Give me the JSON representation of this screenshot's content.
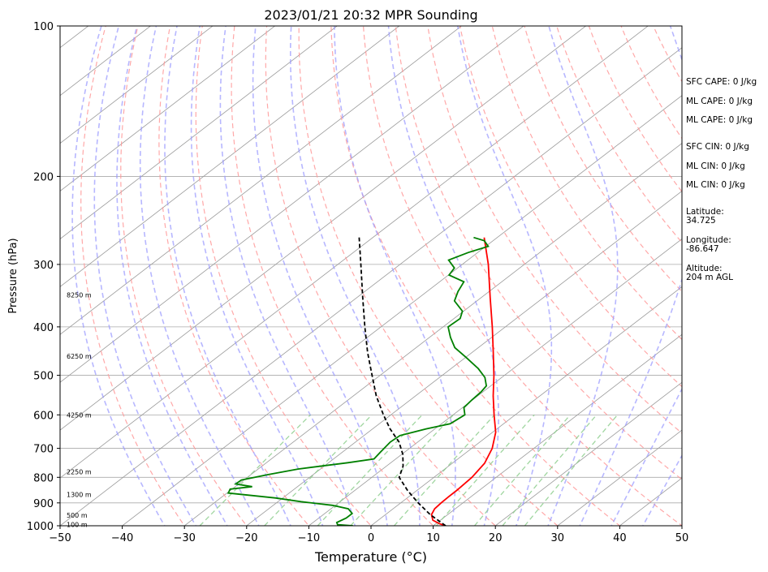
{
  "chart_data": {
    "type": "line",
    "title": "2023/01/21 20:32 MPR Sounding",
    "xlabel": "Temperature (°C)",
    "ylabel": "Pressure (hPa)",
    "xlim": [
      -50,
      50
    ],
    "ylim": [
      1000,
      100
    ],
    "y_scale": "log",
    "x_ticks": [
      -50,
      -40,
      -30,
      -20,
      -10,
      0,
      10,
      20,
      30,
      40,
      50
    ],
    "y_ticks": [
      100,
      200,
      300,
      400,
      500,
      600,
      700,
      800,
      900,
      1000
    ],
    "grid": true,
    "series": [
      {
        "role": "temperature",
        "color": "#ff0000",
        "points": [
          [
            1000,
            12.0
          ],
          [
            990,
            10.5
          ],
          [
            975,
            8.8
          ],
          [
            950,
            7.4
          ],
          [
            925,
            6.7
          ],
          [
            900,
            6.5
          ],
          [
            875,
            6.4
          ],
          [
            850,
            6.4
          ],
          [
            800,
            6.1
          ],
          [
            750,
            5.2
          ],
          [
            700,
            3.3
          ],
          [
            650,
            0.5
          ],
          [
            600,
            -3.4
          ],
          [
            550,
            -7.5
          ],
          [
            500,
            -11.7
          ],
          [
            450,
            -16.6
          ],
          [
            400,
            -22.1
          ],
          [
            350,
            -28.5
          ],
          [
            300,
            -35.8
          ],
          [
            265,
            -42.1
          ]
        ]
      },
      {
        "role": "dewpoint",
        "color": "#008000",
        "points": [
          [
            1000,
            -2.9
          ],
          [
            995,
            -5.6
          ],
          [
            985,
            -6.2
          ],
          [
            965,
            -5.6
          ],
          [
            945,
            -5.6
          ],
          [
            925,
            -7.2
          ],
          [
            910,
            -10.5
          ],
          [
            895,
            -16.3
          ],
          [
            880,
            -21.1
          ],
          [
            860,
            -29.8
          ],
          [
            845,
            -30.3
          ],
          [
            835,
            -27.3
          ],
          [
            825,
            -30.5
          ],
          [
            810,
            -30.4
          ],
          [
            790,
            -27.2
          ],
          [
            770,
            -23.6
          ],
          [
            748,
            -16.9
          ],
          [
            735,
            -13.5
          ],
          [
            712,
            -13.9
          ],
          [
            680,
            -14.4
          ],
          [
            660,
            -14.2
          ],
          [
            640,
            -11.4
          ],
          [
            625,
            -8.6
          ],
          [
            600,
            -8.1
          ],
          [
            580,
            -9.8
          ],
          [
            560,
            -10.1
          ],
          [
            540,
            -10.3
          ],
          [
            525,
            -10.7
          ],
          [
            505,
            -12.7
          ],
          [
            485,
            -15.6
          ],
          [
            460,
            -20.0
          ],
          [
            440,
            -23.8
          ],
          [
            420,
            -26.6
          ],
          [
            400,
            -29.2
          ],
          [
            385,
            -29.0
          ],
          [
            372,
            -30.2
          ],
          [
            355,
            -33.6
          ],
          [
            340,
            -35.0
          ],
          [
            325,
            -36.1
          ],
          [
            315,
            -39.9
          ],
          [
            305,
            -40.5
          ],
          [
            294,
            -43.1
          ],
          [
            284,
            -41.5
          ],
          [
            276,
            -39.6
          ],
          [
            269,
            -41.4
          ],
          [
            265,
            -43.8
          ]
        ]
      },
      {
        "role": "parcel",
        "color": "#000000",
        "dashed": true,
        "points": [
          [
            1000,
            12.0
          ],
          [
            950,
            7.2
          ],
          [
            900,
            2.8
          ],
          [
            850,
            -1.5
          ],
          [
            800,
            -5.6
          ],
          [
            760,
            -7.3
          ],
          [
            720,
            -9.8
          ],
          [
            680,
            -13.0
          ],
          [
            640,
            -17.2
          ],
          [
            600,
            -21.2
          ],
          [
            550,
            -26.3
          ],
          [
            500,
            -31.3
          ],
          [
            450,
            -36.8
          ],
          [
            400,
            -42.6
          ],
          [
            350,
            -49.0
          ],
          [
            300,
            -56.3
          ],
          [
            265,
            -62.2
          ]
        ]
      }
    ],
    "height_labels": [
      {
        "text": "8250 m",
        "p": 345
      },
      {
        "text": "6250 m",
        "p": 458
      },
      {
        "text": "4250 m",
        "p": 600
      },
      {
        "text": "2250 m",
        "p": 780
      },
      {
        "text": "1300 m",
        "p": 866
      },
      {
        "text": "500 m",
        "p": 952
      },
      {
        "text": "100 m",
        "p": 995
      }
    ]
  },
  "indices": {
    "sfc_cape": "SFC CAPE: 0 J/kg",
    "ml_cape_1": "ML CAPE: 0 J/kg",
    "ml_cape_2": "ML CAPE: 0 J/kg",
    "sfc_cin": "SFC CIN: 0 J/kg",
    "ml_cin_1": "ML CIN: 0 J/kg",
    "ml_cin_2": "ML CIN: 0 J/kg",
    "latitude_label": "Latitude:",
    "latitude_value": "34.725",
    "longitude_label": "Longitude:",
    "longitude_value": "-86.647",
    "altitude_label": "Altitude:",
    "altitude_value": "204 m AGL"
  },
  "colors": {
    "temperature": "#ff0000",
    "dewpoint": "#008000",
    "parcel": "#000000",
    "dry_adiabat": "#ff9999",
    "moist_adiabat": "#9999ff",
    "mixing_ratio": "#88cc88",
    "isotherm": "#999999",
    "isobar": "#aaaaaa"
  }
}
